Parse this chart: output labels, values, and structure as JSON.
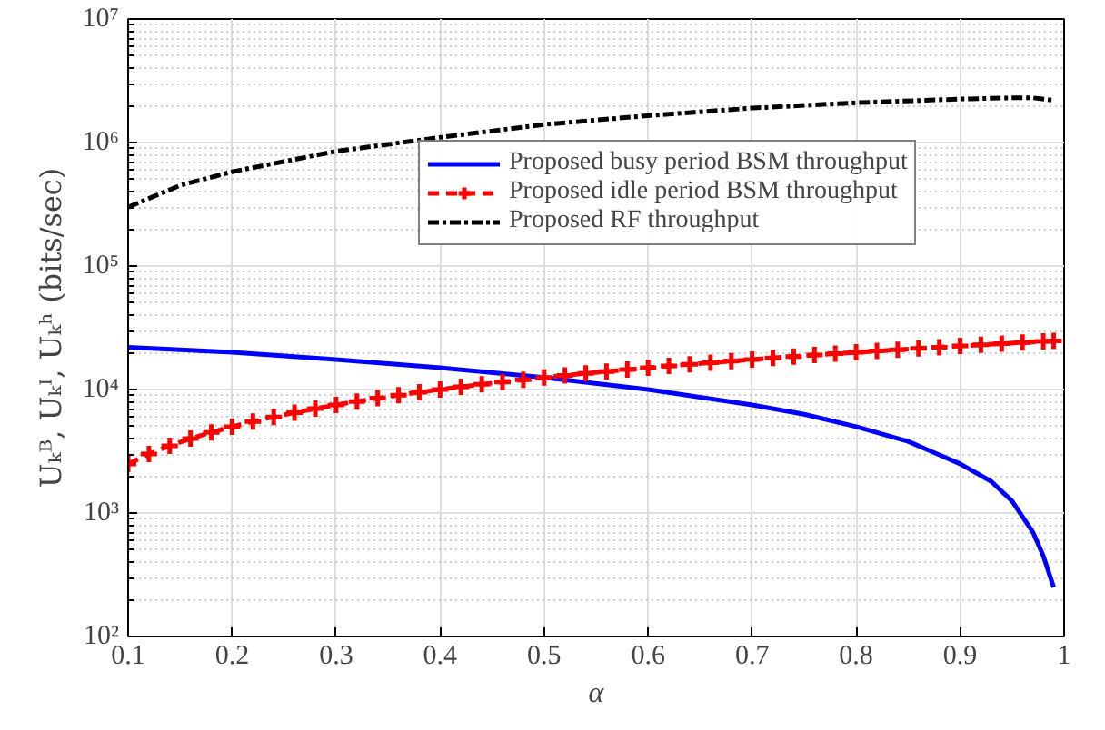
{
  "chart_data": {
    "type": "line",
    "xlabel": "α",
    "ylabel": "Uₖᴮ, Uₖᴵ, Uₖʰ (bits/sec)",
    "log": "y",
    "grid": true,
    "legend": "right",
    "xlim": [
      0.1,
      1
    ],
    "xticks": [
      0.1,
      0.2,
      0.3,
      0.4,
      0.5,
      0.6,
      0.7,
      0.8,
      0.9,
      1
    ],
    "ylim": [
      100,
      10000000
    ],
    "yticks": [
      {
        "value": 100,
        "label": "10²"
      },
      {
        "value": 1000,
        "label": "10³"
      },
      {
        "value": 10000,
        "label": "10⁴"
      },
      {
        "value": 100000,
        "label": "10⁵"
      },
      {
        "value": 1000000,
        "label": "10⁶"
      },
      {
        "value": 10000000,
        "label": "10⁷"
      }
    ],
    "series": [
      {
        "name": "Proposed busy period BSM throughput",
        "color": "#0000ff",
        "line_style": "solid",
        "marker": "none",
        "x": [
          0.1,
          0.2,
          0.3,
          0.4,
          0.5,
          0.6,
          0.7,
          0.75,
          0.8,
          0.85,
          0.9,
          0.93,
          0.95,
          0.97,
          0.98,
          0.99
        ],
        "values": [
          22000,
          20000,
          17500,
          15000,
          12500,
          10000,
          7500,
          6300,
          5000,
          3800,
          2500,
          1800,
          1250,
          700,
          450,
          250
        ]
      },
      {
        "name": "Proposed idle period BSM throughput",
        "color": "#ff0000",
        "line_style": "dashed",
        "marker": "cross",
        "x": [
          0.1,
          0.12,
          0.14,
          0.16,
          0.18,
          0.2,
          0.22,
          0.24,
          0.26,
          0.28,
          0.3,
          0.32,
          0.34,
          0.36,
          0.38,
          0.4,
          0.42,
          0.44,
          0.46,
          0.48,
          0.5,
          0.52,
          0.54,
          0.56,
          0.58,
          0.6,
          0.62,
          0.64,
          0.66,
          0.68,
          0.7,
          0.72,
          0.74,
          0.76,
          0.78,
          0.8,
          0.82,
          0.84,
          0.86,
          0.88,
          0.9,
          0.92,
          0.94,
          0.96,
          0.98,
          0.99
        ],
        "values": [
          2500,
          3000,
          3500,
          4000,
          4500,
          5000,
          5500,
          6000,
          6500,
          7000,
          7500,
          8000,
          8500,
          9000,
          9500,
          10000,
          10500,
          11000,
          11500,
          12000,
          12500,
          13000,
          13500,
          14000,
          14500,
          15000,
          15500,
          16000,
          16500,
          17000,
          17500,
          18000,
          18500,
          19000,
          19500,
          20000,
          20500,
          21000,
          21500,
          22000,
          22500,
          23000,
          23500,
          24000,
          24500,
          24750
        ]
      },
      {
        "name": "Proposed RF throughput",
        "color": "#000000",
        "line_style": "dashdot",
        "marker": "none",
        "x": [
          0.1,
          0.15,
          0.2,
          0.3,
          0.4,
          0.5,
          0.6,
          0.7,
          0.8,
          0.9,
          0.95,
          0.97,
          0.99
        ],
        "values": [
          300000,
          450000,
          580000,
          850000,
          1100000,
          1400000,
          1650000,
          1900000,
          2100000,
          2250000,
          2300000,
          2300000,
          2200000
        ]
      }
    ]
  }
}
